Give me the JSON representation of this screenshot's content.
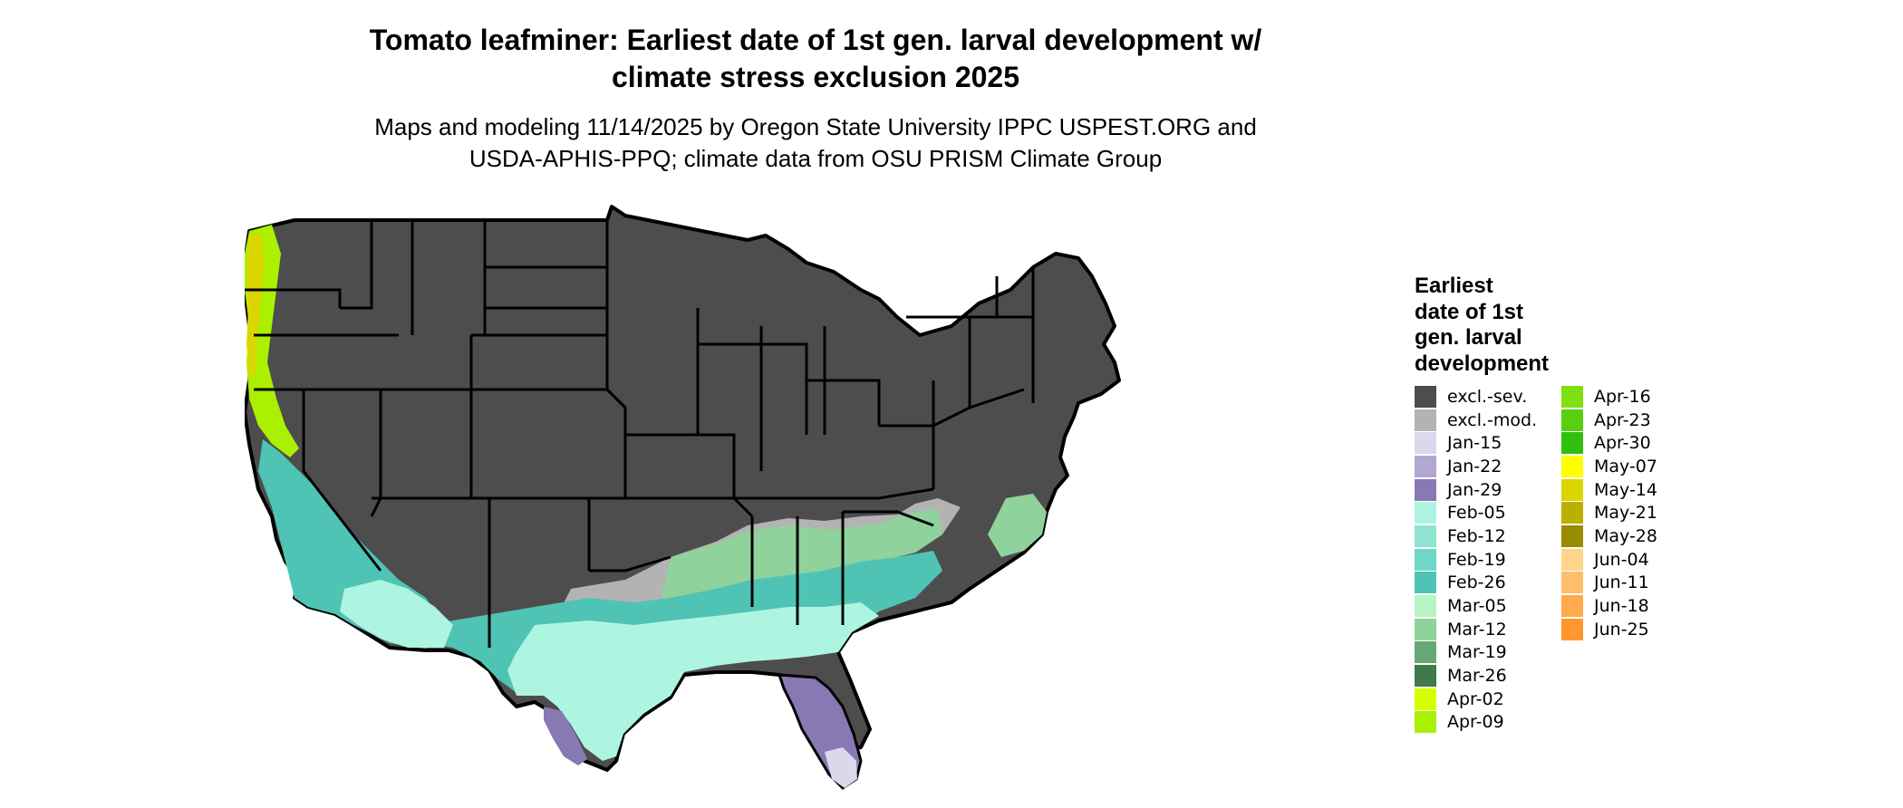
{
  "title_line1": "Tomato leafminer: Earliest date of 1st gen. larval development w/",
  "title_line2": "climate stress exclusion 2025",
  "subtitle_line1": "Maps and modeling 11/14/2025 by Oregon State University IPPC USPEST.ORG and",
  "subtitle_line2": "USDA-APHIS-PPQ; climate data from OSU PRISM Climate Group",
  "legend": {
    "title_lines": [
      "Earliest",
      "date of 1st",
      "gen. larval",
      "development"
    ],
    "column1": [
      {
        "label": "excl.-sev.",
        "color": "#4d4d4d"
      },
      {
        "label": "excl.-mod.",
        "color": "#b3b3b3"
      },
      {
        "label": "Jan-15",
        "color": "#dcd7eb"
      },
      {
        "label": "Jan-22",
        "color": "#b2a6d2"
      },
      {
        "label": "Jan-29",
        "color": "#8878b4"
      },
      {
        "label": "Feb-05",
        "color": "#aef5e1"
      },
      {
        "label": "Feb-12",
        "color": "#8ee6d2"
      },
      {
        "label": "Feb-19",
        "color": "#6fd7c5"
      },
      {
        "label": "Feb-26",
        "color": "#4fc4b4"
      },
      {
        "label": "Mar-05",
        "color": "#b9f5c4"
      },
      {
        "label": "Mar-12",
        "color": "#8fd29c"
      },
      {
        "label": "Mar-19",
        "color": "#66a875"
      },
      {
        "label": "Mar-26",
        "color": "#3f7a48"
      },
      {
        "label": "Apr-02",
        "color": "#d6ff00"
      },
      {
        "label": "Apr-09",
        "color": "#aaf000"
      }
    ],
    "column2": [
      {
        "label": "Apr-16",
        "color": "#7ee010"
      },
      {
        "label": "Apr-23",
        "color": "#58d010"
      },
      {
        "label": "Apr-30",
        "color": "#32c010"
      },
      {
        "label": "May-07",
        "color": "#ffff00"
      },
      {
        "label": "May-14",
        "color": "#dcd600"
      },
      {
        "label": "May-21",
        "color": "#bab000"
      },
      {
        "label": "May-28",
        "color": "#9a8c00"
      },
      {
        "label": "Jun-04",
        "color": "#ffd48c"
      },
      {
        "label": "Jun-11",
        "color": "#ffbe6c"
      },
      {
        "label": "Jun-18",
        "color": "#ffaa4c"
      },
      {
        "label": "Jun-25",
        "color": "#ff962e"
      }
    ]
  },
  "map_colors": {
    "excluded_severe": "#4d4d4d",
    "excluded_moderate": "#b3b3b3",
    "state_boundary": "#000000"
  }
}
